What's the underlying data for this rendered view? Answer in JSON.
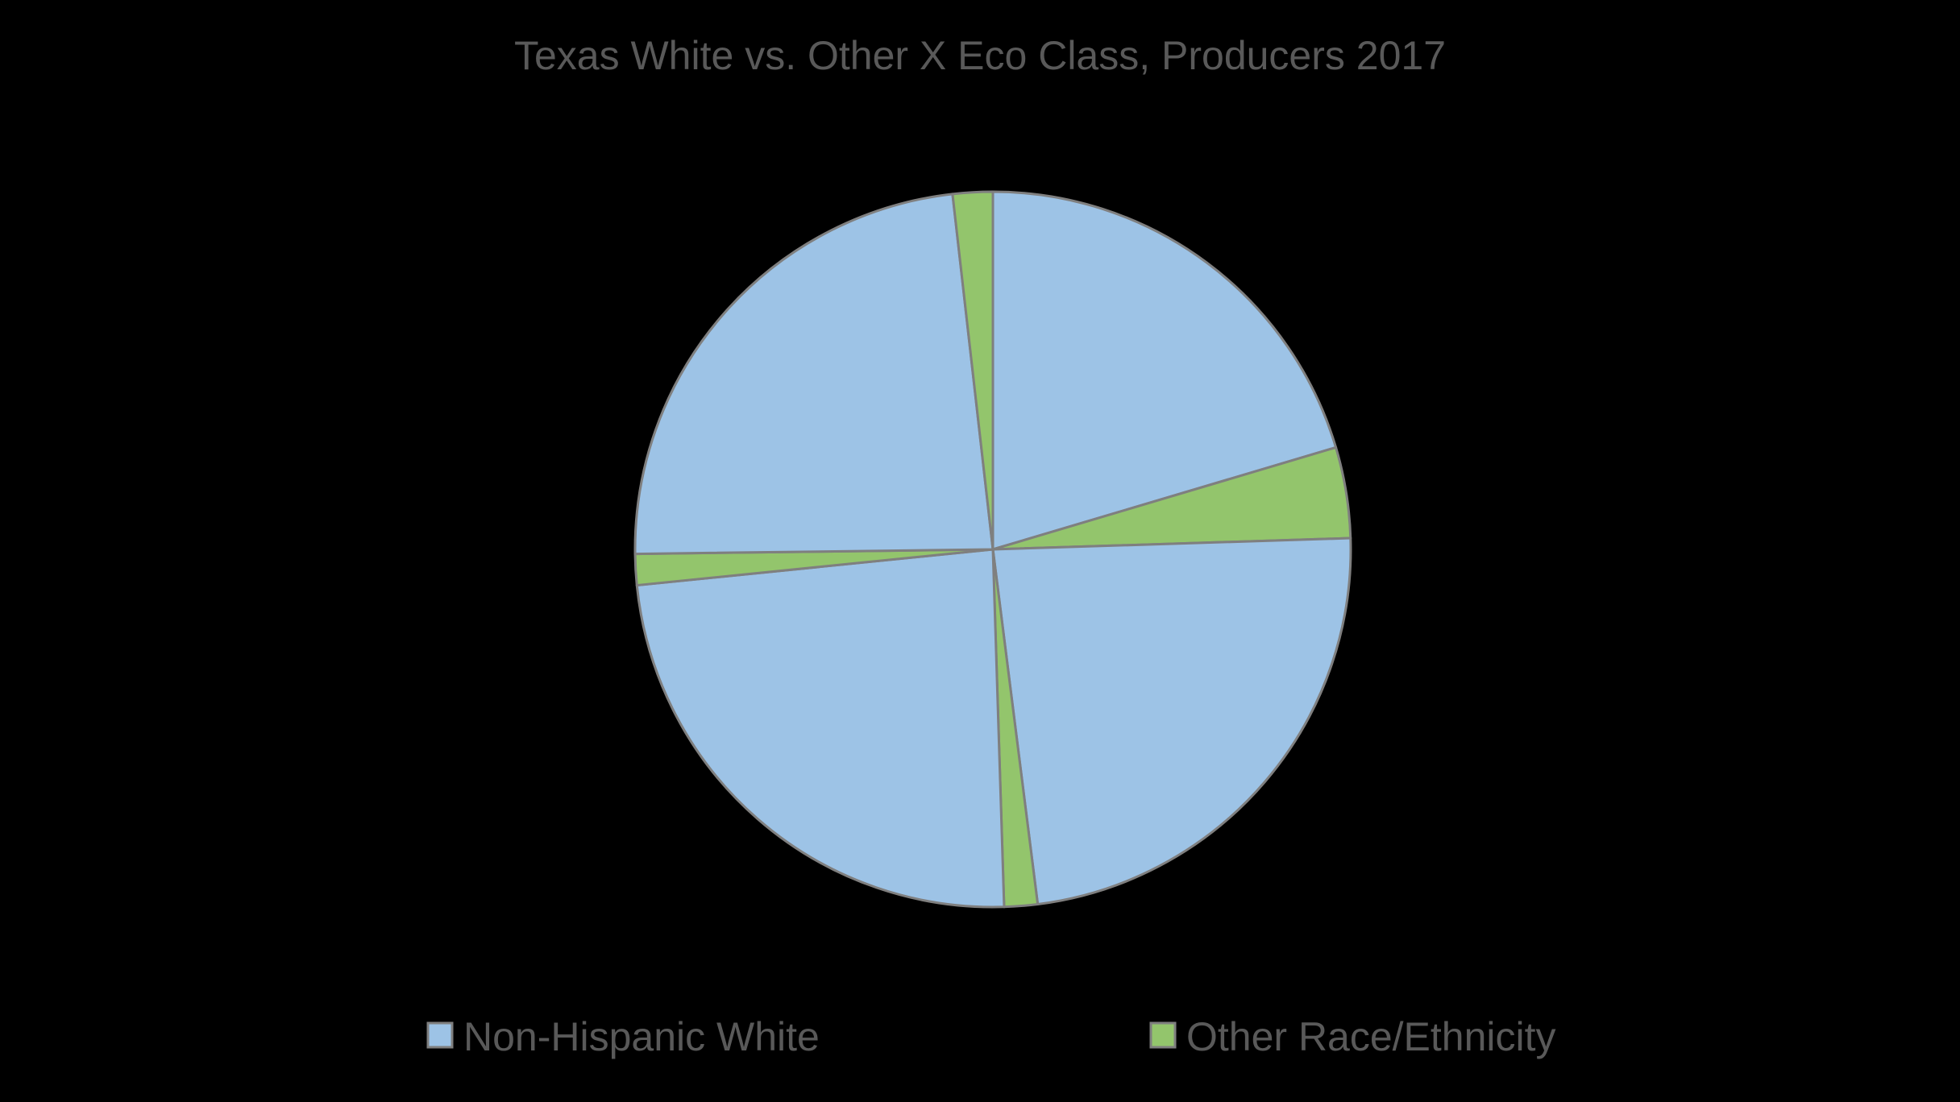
{
  "chart_data": {
    "type": "pie",
    "title": "Texas White vs. Other X Eco Class, Producers 2017",
    "series_names": [
      "Non-Hispanic White",
      "Other Race/Ethnicity"
    ],
    "colors": {
      "Non-Hispanic White": "#9dc3e6",
      "Other Race/Ethnicity": "#93c56c",
      "border": "#7f7f7f"
    },
    "slices": [
      {
        "series": "Non-Hispanic White",
        "value": 20.4
      },
      {
        "series": "Other Race/Ethnicity",
        "value": 4.1
      },
      {
        "series": "Non-Hispanic White",
        "value": 23.5
      },
      {
        "series": "Other Race/Ethnicity",
        "value": 1.5
      },
      {
        "series": "Non-Hispanic White",
        "value": 23.9
      },
      {
        "series": "Other Race/Ethnicity",
        "value": 1.4
      },
      {
        "series": "Non-Hispanic White",
        "value": 23.4
      },
      {
        "series": "Other Race/Ethnicity",
        "value": 1.8
      }
    ],
    "start_angle": "12 o'clock",
    "direction": "clockwise",
    "legend_position": "bottom"
  }
}
